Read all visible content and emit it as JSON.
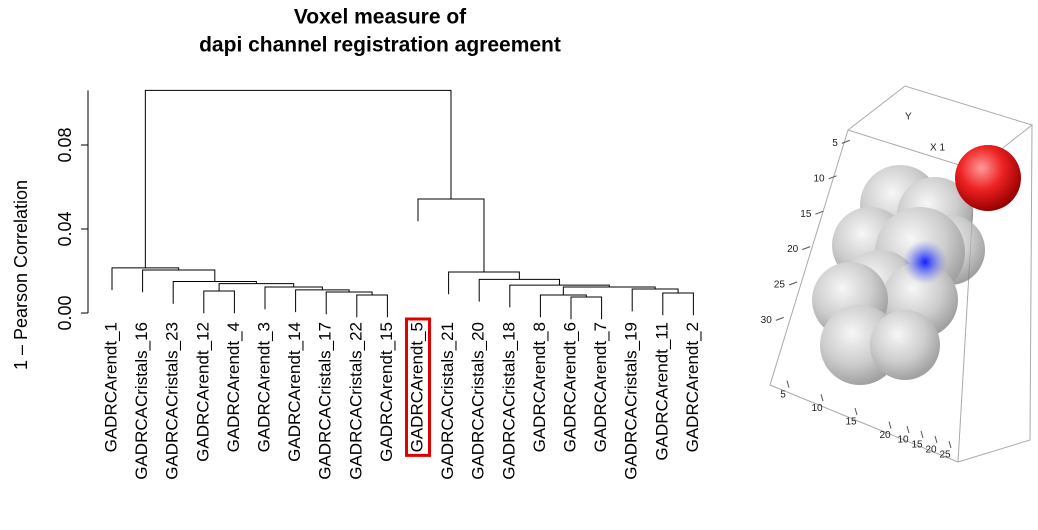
{
  "chart_data": {
    "type": "dendrogram",
    "title": [
      "Voxel measure of",
      "dapi channel registration agreement"
    ],
    "ylabel": "1 – Pearson Correlation",
    "leaves": [
      "GADRCArendt_1",
      "GADRCACristals_16",
      "GADRCACristals_23",
      "GADRCArendt_12",
      "GADRCArendt_4",
      "GADRCArendt_3",
      "GADRCArendt_14",
      "GADRCACristals_17",
      "GADRCACristals_22",
      "GADRCArendt_15",
      "GADRCArendt_5",
      "GADRCACristals_21",
      "GADRCACristals_20",
      "GADRCACristals_18",
      "GADRCArendt_8",
      "GADRCArendt_6",
      "GADRCArendt_7",
      "GADRCACristals_19",
      "GADRCArendt_11",
      "GADRCArendt_2"
    ],
    "merges": [
      {
        "a": -9,
        "b": -10,
        "height": 0.0086
      },
      {
        "a": -8,
        "b": 1,
        "height": 0.01
      },
      {
        "a": -7,
        "b": 2,
        "height": 0.011
      },
      {
        "a": -6,
        "b": 3,
        "height": 0.0124
      },
      {
        "a": -4,
        "b": -5,
        "height": 0.0105
      },
      {
        "a": 5,
        "b": 4,
        "height": 0.014
      },
      {
        "a": -3,
        "b": 6,
        "height": 0.015
      },
      {
        "a": -2,
        "b": 7,
        "height": 0.0205
      },
      {
        "a": -1,
        "b": 8,
        "height": 0.0215
      },
      {
        "a": -16,
        "b": -17,
        "height": 0.0076
      },
      {
        "a": -15,
        "b": 10,
        "height": 0.0086
      },
      {
        "a": -19,
        "b": -20,
        "height": 0.0095
      },
      {
        "a": -18,
        "b": 12,
        "height": 0.0114
      },
      {
        "a": 11,
        "b": 13,
        "height": 0.0124
      },
      {
        "a": -14,
        "b": 14,
        "height": 0.0133
      },
      {
        "a": -13,
        "b": 15,
        "height": 0.016
      },
      {
        "a": -12,
        "b": 16,
        "height": 0.0195
      },
      {
        "a": -11,
        "b": 17,
        "height": 0.0543
      },
      {
        "a": 9,
        "b": 18,
        "height": 0.106
      }
    ],
    "highlight": 10,
    "highlight_color": "#e00000",
    "ylim": [
      0,
      0.106
    ],
    "yticks": [
      {
        "value": 0,
        "label": "0.00"
      },
      {
        "value": 0.04,
        "label": "0.04"
      },
      {
        "value": 0.08,
        "label": "0.08"
      }
    ]
  },
  "render3d": {
    "axis_labels": [
      "Y",
      "X 1"
    ],
    "left_ticks": [
      5,
      10,
      15,
      20,
      25,
      30
    ],
    "bottom_ticks": [
      5,
      10,
      15,
      20
    ],
    "right_ticks": [
      10,
      15,
      20,
      25
    ]
  }
}
